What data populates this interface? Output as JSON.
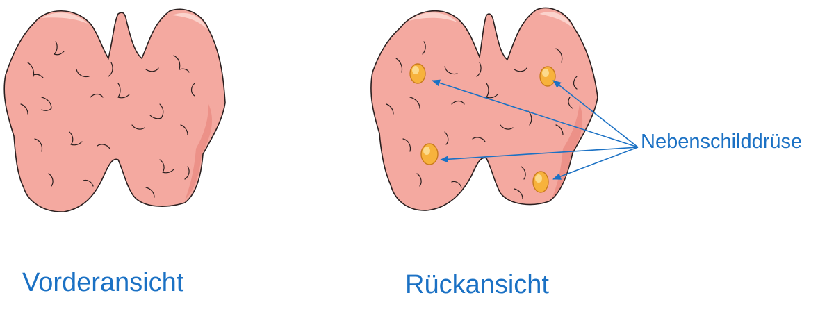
{
  "colors": {
    "gland_fill": "#f4a9a0",
    "gland_highlight": "#fbd3cc",
    "gland_shadow": "#e8877e",
    "outline": "#2a1f1f",
    "parathyroid_fill": "#f7b23c",
    "parathyroid_highlight": "#fde3a0",
    "parathyroid_edge": "#c97b1c",
    "label_text": "#1b71c4",
    "arrow": "#1b71c4"
  },
  "views": {
    "front": {
      "label": "Vorderansicht"
    },
    "back": {
      "label": "Rückansicht"
    }
  },
  "parathyroid": {
    "label": "Nebenschilddrüse",
    "count": 4
  }
}
